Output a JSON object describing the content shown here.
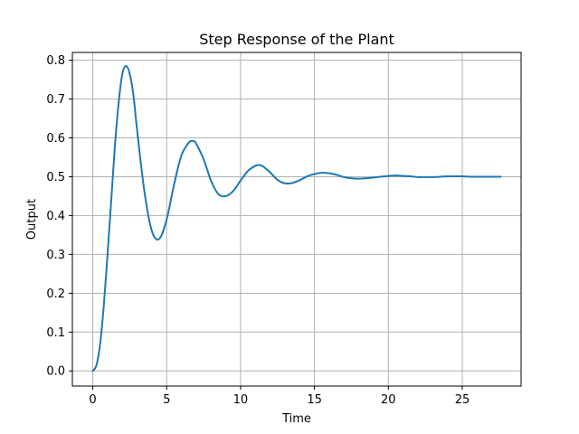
{
  "chart_data": {
    "type": "line",
    "title": "Step Response of the Plant",
    "xlabel": "Time",
    "ylabel": "Output",
    "xlim": [
      -1.38,
      28.98
    ],
    "ylim": [
      -0.039,
      0.82
    ],
    "xticks": [
      0,
      5,
      10,
      15,
      20,
      25
    ],
    "yticks": [
      0.0,
      0.1,
      0.2,
      0.3,
      0.4,
      0.5,
      0.6,
      0.7,
      0.8
    ],
    "ytick_labels": [
      "0.0",
      "0.1",
      "0.2",
      "0.3",
      "0.4",
      "0.5",
      "0.6",
      "0.7",
      "0.8"
    ],
    "grid": true,
    "colors": {
      "line": "#1f77b4",
      "grid": "#b0b0b0",
      "frame": "#000000"
    },
    "series": [
      {
        "x": [
          0,
          0.25,
          0.5,
          0.75,
          1.0,
          1.25,
          1.5,
          1.75,
          2.0,
          2.25,
          2.5,
          2.75,
          3.0,
          3.5,
          4.0,
          4.5,
          5.0,
          5.5,
          6.0,
          6.5,
          6.8,
          7.0,
          7.5,
          8.0,
          8.5,
          9.0,
          9.5,
          10.0,
          10.5,
          11.0,
          11.3,
          11.5,
          12.0,
          12.5,
          13.0,
          13.5,
          14.0,
          14.5,
          15.0,
          15.5,
          16.0,
          16.5,
          17.0,
          17.5,
          18.0,
          18.5,
          19.0,
          19.5,
          20.0,
          20.5,
          21.0,
          21.5,
          22.0,
          22.5,
          23.0,
          23.5,
          24.0,
          24.5,
          25.0,
          25.5,
          26.0,
          26.5,
          27.0,
          27.6
        ],
        "y": [
          0.0,
          0.015,
          0.07,
          0.17,
          0.3,
          0.44,
          0.58,
          0.69,
          0.765,
          0.785,
          0.765,
          0.71,
          0.62,
          0.46,
          0.36,
          0.34,
          0.39,
          0.48,
          0.555,
          0.588,
          0.592,
          0.585,
          0.545,
          0.49,
          0.455,
          0.45,
          0.463,
          0.49,
          0.515,
          0.528,
          0.53,
          0.527,
          0.511,
          0.492,
          0.483,
          0.484,
          0.491,
          0.501,
          0.507,
          0.51,
          0.509,
          0.505,
          0.499,
          0.496,
          0.495,
          0.496,
          0.498,
          0.5,
          0.502,
          0.503,
          0.502,
          0.501,
          0.499,
          0.499,
          0.499,
          0.5,
          0.501,
          0.501,
          0.501,
          0.5,
          0.5,
          0.5,
          0.5,
          0.5
        ]
      }
    ]
  }
}
